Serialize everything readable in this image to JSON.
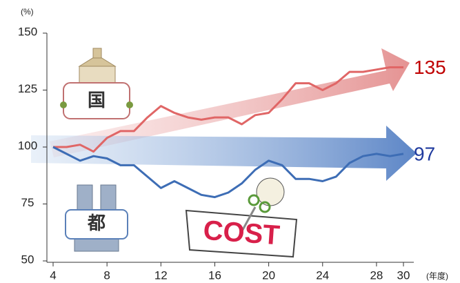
{
  "chart_data": {
    "type": "line",
    "y_unit": "(%)",
    "x_unit": "(年度)",
    "x": [
      4,
      5,
      6,
      7,
      8,
      9,
      10,
      11,
      12,
      13,
      14,
      15,
      16,
      17,
      18,
      19,
      20,
      21,
      22,
      23,
      24,
      25,
      26,
      27,
      28,
      29,
      30
    ],
    "series": [
      {
        "name": "国",
        "color": "#e06666",
        "label_color": "#c00000",
        "values": [
          100,
          100,
          101,
          98,
          104,
          107,
          107,
          113,
          118,
          115,
          113,
          112,
          113,
          113,
          110,
          114,
          115,
          121,
          128,
          128,
          125,
          128,
          133,
          133,
          134,
          135,
          135
        ]
      },
      {
        "name": "都",
        "color": "#3d6db5",
        "label_color": "#1f3a9e",
        "values": [
          100,
          97,
          94,
          96,
          95,
          92,
          92,
          87,
          82,
          85,
          82,
          79,
          78,
          80,
          84,
          90,
          94,
          92,
          86,
          86,
          85,
          87,
          93,
          96,
          97,
          96,
          97
        ]
      }
    ],
    "annotation": "COST",
    "xlim": [
      4,
      30
    ],
    "xticks": [
      4,
      8,
      12,
      16,
      20,
      24,
      28,
      30
    ],
    "ylim": [
      50,
      150
    ],
    "yticks": [
      50,
      75,
      100,
      125,
      150
    ]
  }
}
